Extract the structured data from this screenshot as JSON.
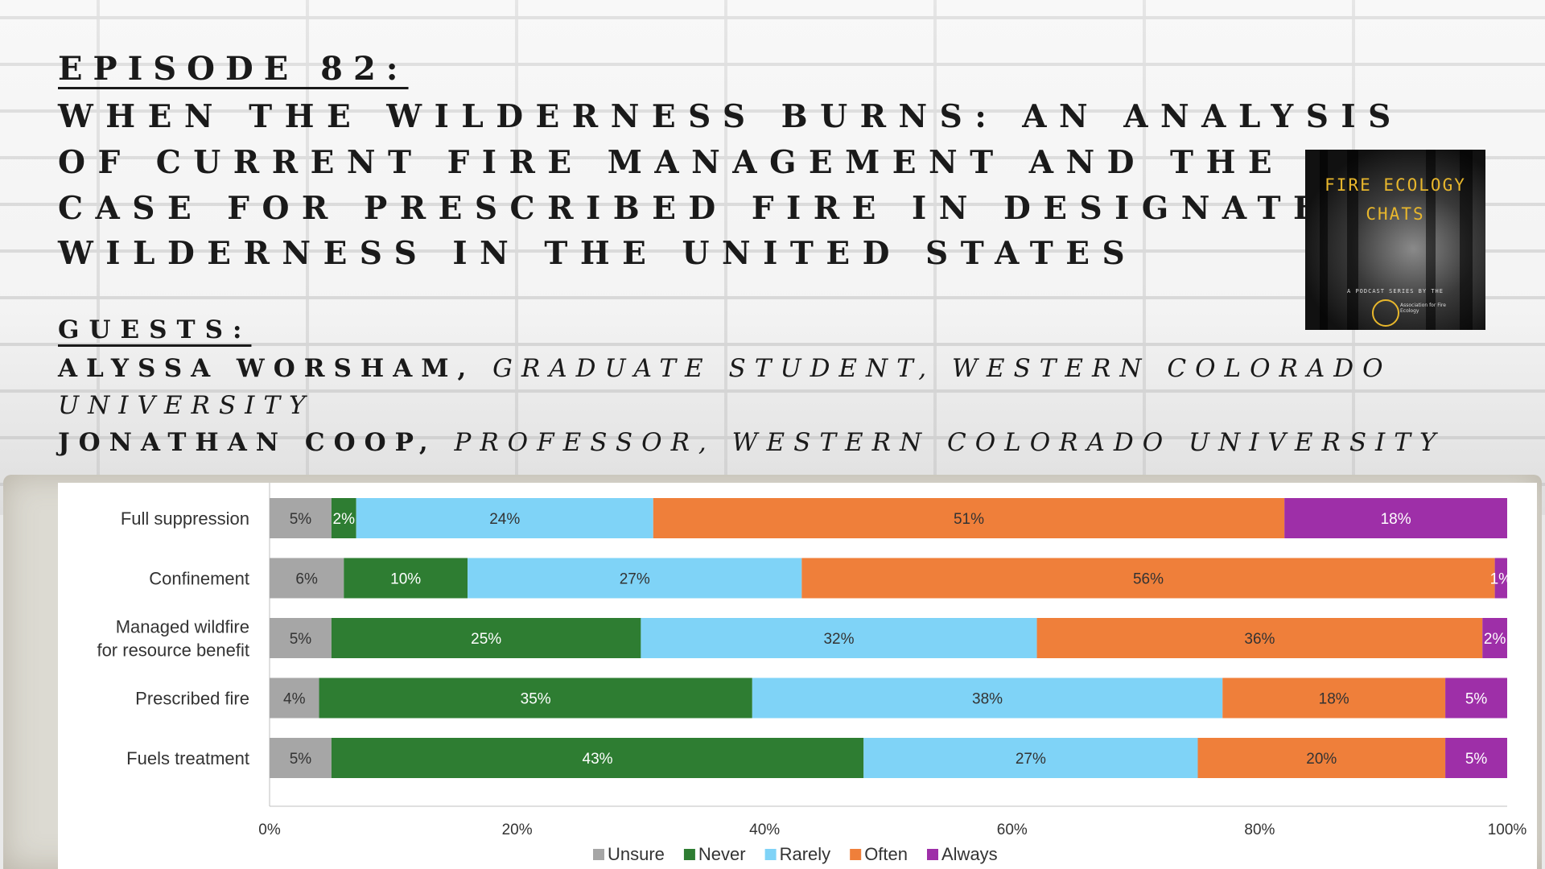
{
  "header": {
    "episode": "EPISODE 82:",
    "title_lines": [
      "WHEN THE WILDERNESS BURNS: AN ANALYSIS",
      "OF CURRENT FIRE MANAGEMENT AND THE",
      "CASE FOR PRESCRIBED FIRE IN DESIGNATED",
      "WILDERNESS IN THE UNITED STATES"
    ],
    "guests_heading": "GUESTS:",
    "guest1_name": "ALYSSA WORSHAM, ",
    "guest1_role_a": "GRADUATE STUDENT, WESTERN COLORADO",
    "guest1_role_b": "UNIVERSITY",
    "guest2_name": "JONATHAN COOP, ",
    "guest2_role": "PROFESSOR, WESTERN COLORADO UNIVERSITY"
  },
  "cover": {
    "title_line1": "FIRE ECOLOGY",
    "title_line2": "CHATS",
    "subtitle": "A PODCAST SERIES BY THE",
    "org": "Association for Fire Ecology"
  },
  "colors": {
    "Unsure": "#a6a6a6",
    "Never": "#2e7d32",
    "Rarely": "#7fd3f7",
    "Often": "#ef7f3a",
    "Always": "#9e2fa8"
  },
  "chart_data": {
    "type": "bar",
    "orientation": "horizontal",
    "stacked": true,
    "categories": [
      "Full suppression",
      "Confinement",
      "Managed wildfire\nfor resource benefit",
      "Prescribed fire",
      "Fuels treatment"
    ],
    "series": [
      {
        "name": "Unsure",
        "values": [
          5,
          6,
          5,
          4,
          5
        ]
      },
      {
        "name": "Never",
        "values": [
          2,
          10,
          25,
          35,
          43
        ]
      },
      {
        "name": "Rarely",
        "values": [
          24,
          27,
          32,
          38,
          27
        ]
      },
      {
        "name": "Often",
        "values": [
          51,
          56,
          36,
          18,
          20
        ]
      },
      {
        "name": "Always",
        "values": [
          18,
          1,
          2,
          5,
          5
        ]
      }
    ],
    "data_labels": [
      [
        "5%",
        "2%",
        "24%",
        "51%",
        "18%"
      ],
      [
        "6%",
        "10%",
        "27%",
        "56%",
        "1%"
      ],
      [
        "5%",
        "25%",
        "32%",
        "36%",
        "2%"
      ],
      [
        "4%",
        "35%",
        "38%",
        "18%",
        "5%"
      ],
      [
        "5%",
        "43%",
        "27%",
        "20%",
        "5%"
      ]
    ],
    "xticks": [
      "0%",
      "20%",
      "40%",
      "60%",
      "80%",
      "100%"
    ],
    "xlim": [
      0,
      100
    ],
    "legend_position": "bottom",
    "grid": false,
    "title": "",
    "xlabel": "",
    "ylabel": ""
  }
}
